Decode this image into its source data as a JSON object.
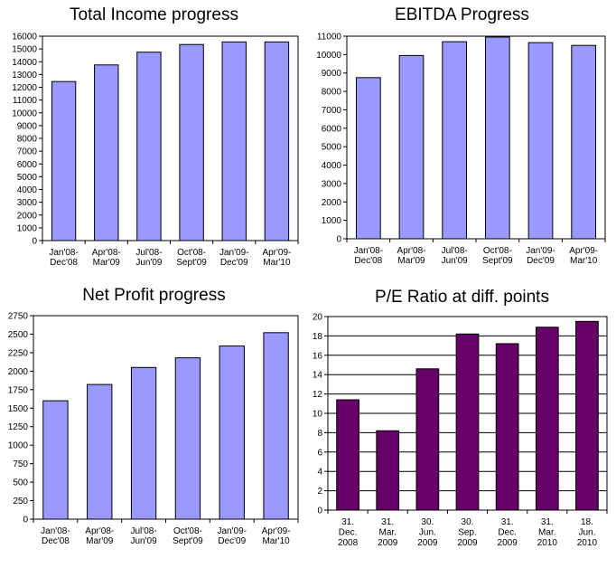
{
  "chart_data": [
    {
      "type": "bar",
      "title": "Total Income progress",
      "categories": [
        [
          "Jan'08-",
          "Dec'08"
        ],
        [
          "Apr'08-",
          "Mar'09"
        ],
        [
          "Jul'08-",
          "Jun'09"
        ],
        [
          "Oct'08-",
          "Sept'09"
        ],
        [
          "Jan'09-",
          "Dec'09"
        ],
        [
          "Apr'09-",
          "Mar'10"
        ]
      ],
      "values": [
        12450,
        13750,
        14750,
        15350,
        15550,
        15550
      ],
      "ylim": [
        0,
        16000
      ],
      "yticks": [
        0,
        1000,
        2000,
        3000,
        4000,
        5000,
        6000,
        7000,
        8000,
        9000,
        10000,
        11000,
        12000,
        13000,
        14000,
        15000,
        16000
      ],
      "color": "#9999ff",
      "grid": false,
      "xlabel": "",
      "ylabel": ""
    },
    {
      "type": "bar",
      "title": "EBITDA Progress",
      "categories": [
        [
          "Jan'08-",
          "Dec'08"
        ],
        [
          "Apr'08-",
          "Mar'09"
        ],
        [
          "Jul'08-",
          "Jun'09"
        ],
        [
          "Oct'08-",
          "Sept'09"
        ],
        [
          "Jan'09-",
          "Dec'09"
        ],
        [
          "Apr'09-",
          "Mar'10"
        ]
      ],
      "values": [
        8750,
        9950,
        10700,
        10950,
        10650,
        10500
      ],
      "ylim": [
        0,
        11000
      ],
      "yticks": [
        0,
        1000,
        2000,
        3000,
        4000,
        5000,
        6000,
        7000,
        8000,
        9000,
        10000,
        11000
      ],
      "color": "#9999ff",
      "grid": false,
      "xlabel": "",
      "ylabel": ""
    },
    {
      "type": "bar",
      "title": "Net Profit progress",
      "categories": [
        [
          "Jan'08-",
          "Dec'08"
        ],
        [
          "Apr'08-",
          "Mar'09"
        ],
        [
          "Jul'08-",
          "Jun'09"
        ],
        [
          "Oct'08-",
          "Sept'09"
        ],
        [
          "Jan'09-",
          "Dec'09"
        ],
        [
          "Apr'09-",
          "Mar'10"
        ]
      ],
      "values": [
        1600,
        1820,
        2050,
        2180,
        2340,
        2520
      ],
      "ylim": [
        0,
        2750
      ],
      "yticks": [
        0,
        250,
        500,
        750,
        1000,
        1250,
        1500,
        1750,
        2000,
        2250,
        2500,
        2750
      ],
      "color": "#9999ff",
      "grid": false,
      "xlabel": "",
      "ylabel": ""
    },
    {
      "type": "bar",
      "title": "P/E Ratio at diff. points",
      "categories": [
        [
          "31.",
          "Dec.",
          "2008"
        ],
        [
          "31.",
          "Mar.",
          "2009"
        ],
        [
          "30.",
          "Jun.",
          "2009"
        ],
        [
          "30.",
          "Sep.",
          "2009"
        ],
        [
          "31.",
          "Dec.",
          "2009"
        ],
        [
          "31.",
          "Mar.",
          "2010"
        ],
        [
          "18.",
          "Jun.",
          "2010"
        ]
      ],
      "values": [
        11.4,
        8.2,
        14.6,
        18.2,
        17.2,
        18.9,
        19.5
      ],
      "ylim": [
        0,
        20
      ],
      "yticks": [
        0,
        2,
        4,
        6,
        8,
        10,
        12,
        14,
        16,
        18,
        20
      ],
      "color": "#660066",
      "grid": true,
      "xlabel": "",
      "ylabel": ""
    }
  ]
}
